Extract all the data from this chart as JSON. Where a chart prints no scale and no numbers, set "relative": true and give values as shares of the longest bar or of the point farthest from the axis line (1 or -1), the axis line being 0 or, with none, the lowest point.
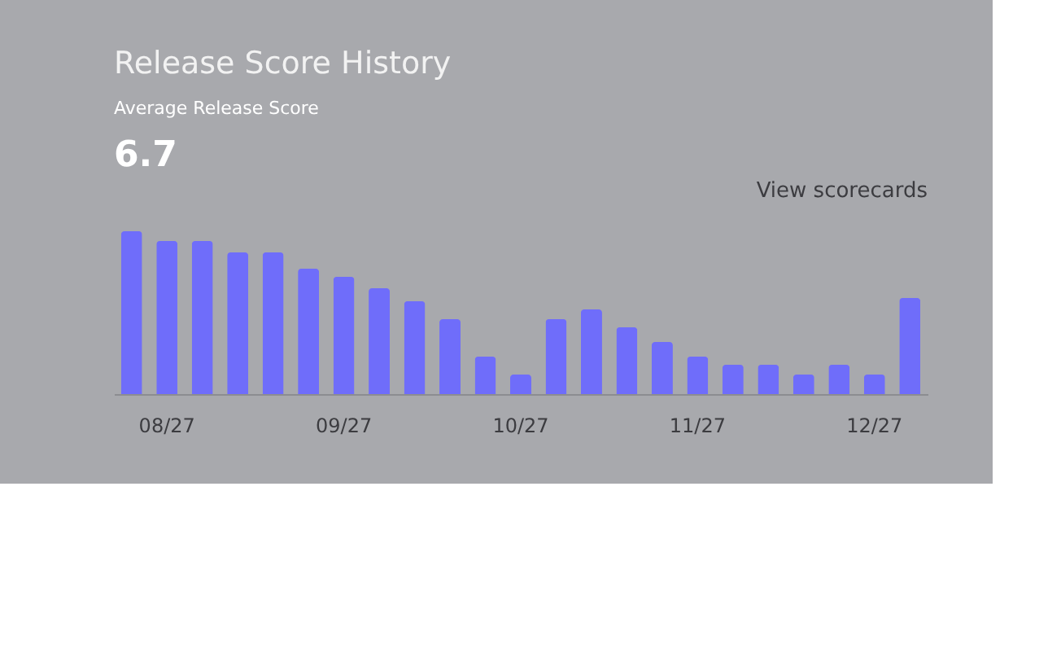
{
  "chart_data": {
    "type": "bar",
    "title": "Release Score History",
    "relative": true,
    "color": "#6f6dfa",
    "grid": false,
    "tick_labels": "x",
    "categories": [
      null,
      "08/27",
      null,
      null,
      null,
      null,
      "09/27",
      null,
      null,
      null,
      null,
      "10/27",
      null,
      null,
      null,
      null,
      "11/27",
      null,
      null,
      null,
      null,
      "12/27",
      null
    ],
    "values": [
      1,
      0.94,
      0.94,
      0.87,
      0.87,
      0.77,
      0.72,
      0.65,
      0.57,
      0.46,
      0.23,
      0.12,
      0.46,
      0.52,
      0.41,
      0.32,
      0.23,
      0.18,
      0.18,
      0.12,
      0.18,
      0.12,
      0.59
    ],
    "annotations": [
      "Average Release Score",
      "6.7",
      "View scorecards"
    ]
  }
}
